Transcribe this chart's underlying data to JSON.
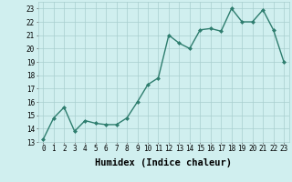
{
  "x": [
    0,
    1,
    2,
    3,
    4,
    5,
    6,
    7,
    8,
    9,
    10,
    11,
    12,
    13,
    14,
    15,
    16,
    17,
    18,
    19,
    20,
    21,
    22,
    23
  ],
  "y": [
    13.2,
    14.8,
    15.6,
    13.8,
    14.6,
    14.4,
    14.3,
    14.3,
    14.8,
    16.0,
    17.3,
    17.8,
    21.0,
    20.4,
    20.0,
    21.4,
    21.5,
    21.3,
    23.0,
    22.0,
    22.0,
    22.9,
    21.4,
    19.0
  ],
  "line_color": "#2e7d6e",
  "marker": "D",
  "marker_size": 2.0,
  "bg_color": "#d0efef",
  "grid_color": "#a8cece",
  "xlabel": "Humidex (Indice chaleur)",
  "xlim": [
    -0.5,
    23.5
  ],
  "ylim": [
    13,
    23.5
  ],
  "yticks": [
    13,
    14,
    15,
    16,
    17,
    18,
    19,
    20,
    21,
    22,
    23
  ],
  "xticks": [
    0,
    1,
    2,
    3,
    4,
    5,
    6,
    7,
    8,
    9,
    10,
    11,
    12,
    13,
    14,
    15,
    16,
    17,
    18,
    19,
    20,
    21,
    22,
    23
  ],
  "tick_fontsize": 5.5,
  "xlabel_fontsize": 7.5,
  "line_width": 1.0
}
